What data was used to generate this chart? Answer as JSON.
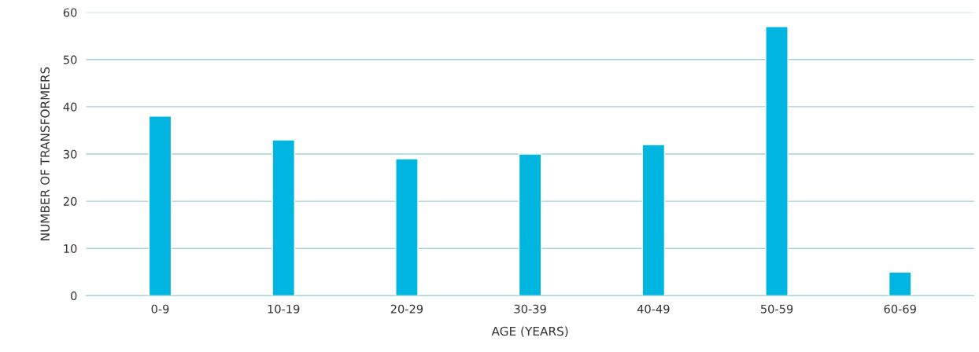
{
  "chart_data": {
    "type": "bar",
    "xlabel": "AGE (YEARS)",
    "ylabel": "NUMBER OF TRANSFORMERS",
    "categories": [
      "0-9",
      "10-19",
      "20-29",
      "30-39",
      "40-49",
      "50-59",
      "60-69"
    ],
    "values": [
      38,
      33,
      29,
      30,
      32,
      57,
      5
    ],
    "color": "#00b5e0",
    "ylim": [
      0,
      60
    ],
    "yticks": [
      0,
      10,
      20,
      30,
      40,
      50,
      60
    ],
    "grid": "y"
  }
}
